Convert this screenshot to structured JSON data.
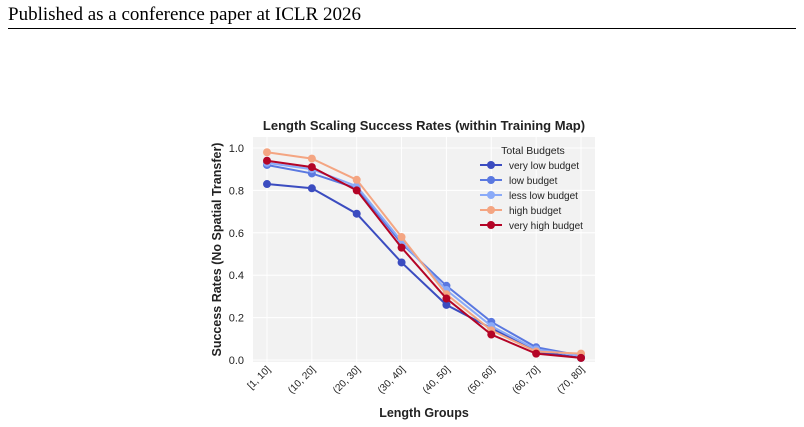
{
  "page": {
    "header": "Published as a conference paper at ICLR 2026"
  },
  "chart_data": {
    "type": "line",
    "title": "Length Scaling Success Rates (within Training Map)",
    "xlabel": "Length Groups",
    "ylabel": "Success Rates (No Spatial Transfer)",
    "categories": [
      "[1, 10]",
      "(10, 20]",
      "(20, 30]",
      "(30, 40]",
      "(40, 50]",
      "(50, 60]",
      "(60, 70]",
      "(70, 80]"
    ],
    "ylim": [
      0,
      1.0
    ],
    "yticks": [
      0.0,
      0.2,
      0.4,
      0.6,
      0.8,
      1.0
    ],
    "ytick_labels": [
      "0.0",
      "0.2",
      "0.4",
      "0.6",
      "0.8",
      "1.0"
    ],
    "grid": true,
    "background": "#f2f2f2",
    "legend": {
      "title": "Total Budgets",
      "placement": "top-right"
    },
    "series": [
      {
        "name": "very low budget",
        "color": "#3b4cc0",
        "values": [
          0.83,
          0.81,
          0.69,
          0.46,
          0.26,
          0.15,
          0.04,
          0.01
        ]
      },
      {
        "name": "low budget",
        "color": "#5a78e0",
        "values": [
          0.92,
          0.88,
          0.81,
          0.55,
          0.35,
          0.18,
          0.06,
          0.02
        ]
      },
      {
        "name": "less low budget",
        "color": "#8aaaf8",
        "values": [
          0.93,
          0.9,
          0.82,
          0.56,
          0.33,
          0.16,
          0.05,
          0.02
        ]
      },
      {
        "name": "high budget",
        "color": "#f4a582",
        "values": [
          0.98,
          0.95,
          0.85,
          0.58,
          0.31,
          0.14,
          0.04,
          0.03
        ]
      },
      {
        "name": "very high budget",
        "color": "#b40426",
        "values": [
          0.94,
          0.91,
          0.8,
          0.53,
          0.29,
          0.12,
          0.03,
          0.01
        ]
      }
    ]
  }
}
